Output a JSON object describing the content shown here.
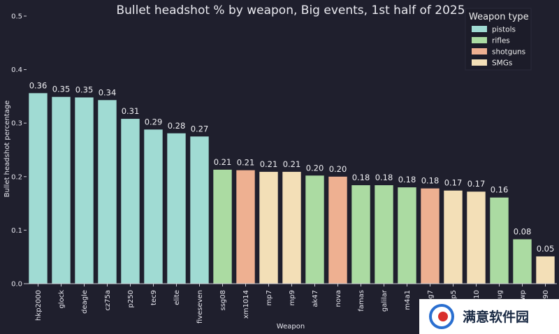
{
  "chart_data": {
    "type": "bar",
    "title": "Bullet headshot % by weapon, Big events, 1st half of 2025",
    "xlabel": "Weapon",
    "ylabel": "Bullet headshot percentage",
    "ylim": [
      0,
      0.5
    ],
    "yticks": [
      "0.0",
      "0.1",
      "0.2",
      "0.3",
      "0.4",
      "0.5"
    ],
    "grid": false,
    "legend_position": "top-right",
    "legend_title": "Weapon type",
    "legend": [
      {
        "name": "pistols",
        "color": "#a0dbd3"
      },
      {
        "name": "rifles",
        "color": "#abdba2"
      },
      {
        "name": "shotguns",
        "color": "#eeb091"
      },
      {
        "name": "SMGs",
        "color": "#f3dfb7"
      }
    ],
    "categories": [
      "hkp2000",
      "glock",
      "deagle",
      "cz75a",
      "p250",
      "tec9",
      "elite",
      "fiveseven",
      "ssg08",
      "xm1014",
      "mp7",
      "mp9",
      "ak47",
      "nova",
      "famas",
      "galilar",
      "m4a1",
      "mag7",
      "mp5",
      "mac10",
      "aug",
      "awp",
      "p90"
    ],
    "values": [
      0.356,
      0.349,
      0.348,
      0.343,
      0.308,
      0.288,
      0.281,
      0.275,
      0.213,
      0.212,
      0.209,
      0.209,
      0.202,
      0.2,
      0.184,
      0.184,
      0.18,
      0.178,
      0.174,
      0.172,
      0.161,
      0.083,
      0.051
    ],
    "data_labels": [
      "0.36",
      "0.35",
      "0.35",
      "0.34",
      "0.31",
      "0.29",
      "0.28",
      "0.27",
      "0.21",
      "0.21",
      "0.21",
      "0.21",
      "0.20",
      "0.20",
      "0.18",
      "0.18",
      "0.18",
      "0.18",
      "0.17",
      "0.17",
      "0.16",
      "0.08",
      "0.05"
    ],
    "series_type": [
      "pistols",
      "pistols",
      "pistols",
      "pistols",
      "pistols",
      "pistols",
      "pistols",
      "pistols",
      "rifles",
      "shotguns",
      "SMGs",
      "SMGs",
      "rifles",
      "shotguns",
      "rifles",
      "rifles",
      "rifles",
      "shotguns",
      "SMGs",
      "SMGs",
      "rifles",
      "rifles",
      "SMGs"
    ]
  },
  "watermark": {
    "text": "满意软件园"
  },
  "colors": {
    "background": "#1f1f2d",
    "axis": "#cfcfd8",
    "text": "#eaeaf0"
  }
}
